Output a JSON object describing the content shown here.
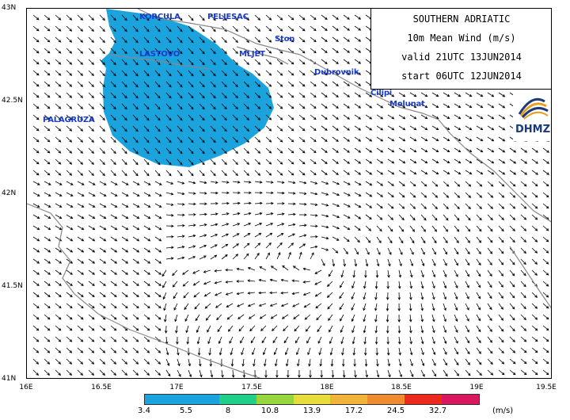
{
  "title_box": {
    "line1": "SOUTHERN ADRIATIC",
    "line2": "10m Mean Wind (m/s)",
    "line3": "valid 21UTC 13JUN2014",
    "line4": "start 06UTC 12JUN2014"
  },
  "logo": {
    "text": "DHMZ"
  },
  "axes": {
    "lat_labels": [
      "43N",
      "42.5N",
      "42N",
      "41.5N",
      "41N"
    ],
    "lon_labels": [
      "16E",
      "16.5E",
      "17E",
      "17.5E",
      "18E",
      "18.5E",
      "19E",
      "19.5E"
    ]
  },
  "places": {
    "korcula": "KORCULA",
    "peljesac": "PELJESAC",
    "ston": "Ston",
    "lastovo": "LASTOVO",
    "mljet": "MLJET",
    "dubrovnik": "Dubrovnik",
    "cilipi": "Cilipi",
    "molunat": "Molunat",
    "palagruza": "PALAGRUZA"
  },
  "legend": {
    "labels": [
      "3.4",
      "5.5",
      "8",
      "10.8",
      "13.9",
      "17.2",
      "24.5",
      "32.7"
    ],
    "colors": [
      "#1aa3dd",
      "#1aa3dd",
      "#1fd08a",
      "#98d640",
      "#e6dc3a",
      "#f0b43a",
      "#ee8a30",
      "#ec2a20",
      "#d8185e"
    ],
    "units": "(m/s)"
  },
  "wind_shading": {
    "level_shown": "3.4-5.5 m/s",
    "color": "#1aa3dd"
  }
}
